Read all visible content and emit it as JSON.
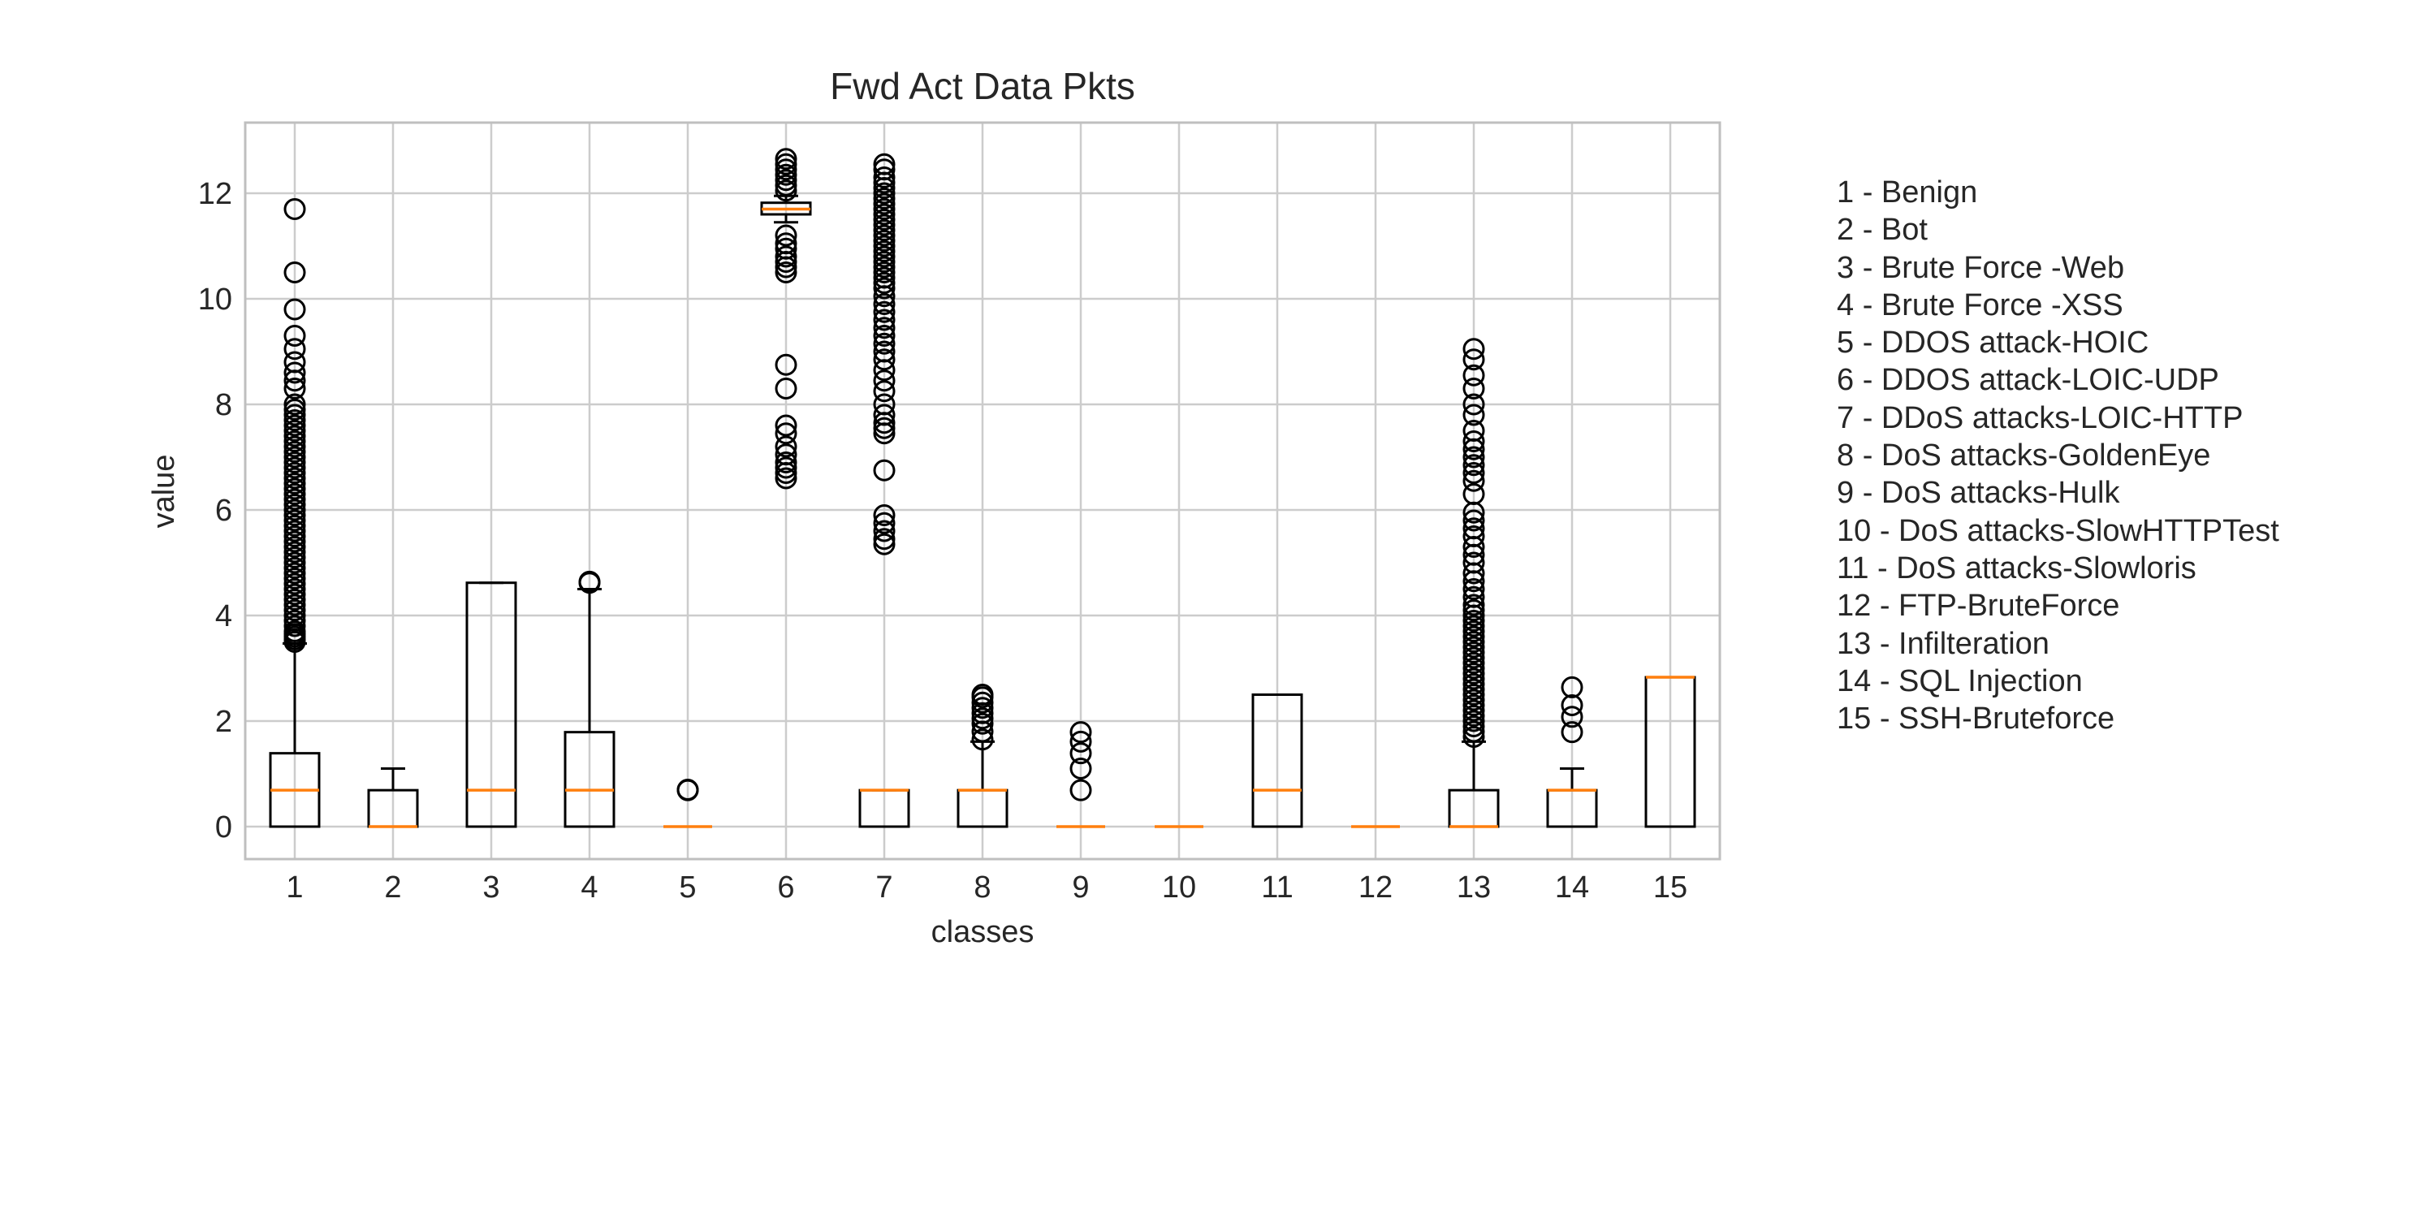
{
  "chart_data": {
    "type": "boxplot",
    "title": "Fwd Act Data Pkts",
    "xlabel": "classes",
    "ylabel": "value",
    "categories": [
      "1",
      "2",
      "3",
      "4",
      "5",
      "6",
      "7",
      "8",
      "9",
      "10",
      "11",
      "12",
      "13",
      "14",
      "15"
    ],
    "ylim": [
      -0.6,
      13.2
    ],
    "yticks": [
      0,
      2,
      4,
      6,
      8,
      10,
      12
    ],
    "grid": true,
    "legend_position": "right",
    "colors": {
      "box": "#000000",
      "median": "#ff7f0e",
      "grid": "#cccccc",
      "frame": "#bfbfbf"
    },
    "boxes": [
      {
        "q1": 0,
        "median": 0.69,
        "q3": 1.39,
        "whislo": 0,
        "whishi": 3.47,
        "outliers": [
          3.5,
          3.55,
          3.6,
          3.65,
          3.7,
          3.8,
          3.9,
          4.0,
          4.1,
          4.2,
          4.3,
          4.4,
          4.5,
          4.6,
          4.7,
          4.8,
          4.9,
          5.0,
          5.1,
          5.2,
          5.3,
          5.4,
          5.5,
          5.6,
          5.7,
          5.8,
          5.9,
          6.0,
          6.1,
          6.2,
          6.3,
          6.4,
          6.5,
          6.6,
          6.7,
          6.8,
          6.9,
          7.0,
          7.1,
          7.2,
          7.3,
          7.4,
          7.5,
          7.6,
          7.7,
          7.8,
          7.9,
          8.0,
          8.3,
          8.45,
          8.6,
          8.8,
          9.05,
          9.3,
          9.8,
          10.5,
          11.7
        ]
      },
      {
        "q1": 0,
        "median": 0,
        "q3": 0.69,
        "whislo": 0,
        "whishi": 1.1,
        "outliers": []
      },
      {
        "q1": 0,
        "median": 0.69,
        "q3": 4.62,
        "whislo": 0,
        "whishi": 4.62,
        "outliers": []
      },
      {
        "q1": 0,
        "median": 0.69,
        "q3": 1.79,
        "whislo": 0,
        "whishi": 4.5,
        "outliers": [
          4.62,
          4.64
        ]
      },
      {
        "q1": 0,
        "median": 0,
        "q3": 0,
        "whislo": 0,
        "whishi": 0,
        "outliers": [
          0.69,
          0.7
        ]
      },
      {
        "q1": 11.6,
        "median": 11.7,
        "q3": 11.82,
        "whislo": 11.45,
        "whishi": 11.95,
        "outliers": [
          6.6,
          6.7,
          6.8,
          6.9,
          7.05,
          7.2,
          7.45,
          7.6,
          8.3,
          8.75,
          10.5,
          10.6,
          10.7,
          10.8,
          10.95,
          11.05,
          11.2,
          12.05,
          12.15,
          12.25,
          12.35,
          12.45,
          12.55,
          12.65
        ]
      },
      {
        "q1": 0,
        "median": 0.69,
        "q3": 0.69,
        "whislo": 0,
        "whishi": 0.69,
        "outliers": [
          5.35,
          5.45,
          5.6,
          5.75,
          5.9,
          6.75,
          7.45,
          7.55,
          7.65,
          7.8,
          8.0,
          8.25,
          8.45,
          8.65,
          8.85,
          9.0,
          9.15,
          9.3,
          9.45,
          9.6,
          9.75,
          9.9,
          10.05,
          10.2,
          10.3,
          10.4,
          10.5,
          10.6,
          10.7,
          10.8,
          10.9,
          11.0,
          11.1,
          11.2,
          11.3,
          11.4,
          11.5,
          11.6,
          11.7,
          11.8,
          11.9,
          12.0,
          12.1,
          12.2,
          12.3,
          12.45,
          12.55
        ]
      },
      {
        "q1": 0,
        "median": 0.69,
        "q3": 0.69,
        "whislo": 0,
        "whishi": 1.61,
        "outliers": [
          1.65,
          1.8,
          1.95,
          2.05,
          2.15,
          2.25,
          2.35,
          2.45,
          2.5
        ]
      },
      {
        "q1": 0,
        "median": 0,
        "q3": 0,
        "whislo": 0,
        "whishi": 0,
        "outliers": [
          0.69,
          1.1,
          1.39,
          1.61,
          1.79
        ]
      },
      {
        "q1": 0,
        "median": 0,
        "q3": 0,
        "whislo": 0,
        "whishi": 0,
        "outliers": []
      },
      {
        "q1": 0,
        "median": 0.69,
        "q3": 2.5,
        "whislo": 0,
        "whishi": 2.5,
        "outliers": []
      },
      {
        "q1": 0,
        "median": 0,
        "q3": 0,
        "whislo": 0,
        "whishi": 0,
        "outliers": []
      },
      {
        "q1": 0,
        "median": 0,
        "q3": 0.69,
        "whislo": 0,
        "whishi": 1.61,
        "outliers": [
          1.7,
          1.8,
          1.9,
          2.0,
          2.1,
          2.2,
          2.3,
          2.4,
          2.5,
          2.6,
          2.7,
          2.8,
          2.9,
          3.0,
          3.1,
          3.2,
          3.3,
          3.4,
          3.5,
          3.6,
          3.7,
          3.8,
          3.9,
          4.0,
          4.1,
          4.2,
          4.35,
          4.5,
          4.65,
          4.8,
          5.0,
          5.15,
          5.3,
          5.5,
          5.65,
          5.8,
          5.95,
          6.3,
          6.55,
          6.7,
          6.85,
          7.0,
          7.15,
          7.3,
          7.5,
          7.8,
          8.0,
          8.3,
          8.55,
          8.85,
          9.05
        ]
      },
      {
        "q1": 0,
        "median": 0.69,
        "q3": 0.69,
        "whislo": 0,
        "whishi": 1.1,
        "outliers": [
          1.79,
          2.08,
          2.3,
          2.64
        ]
      },
      {
        "q1": 0,
        "median": 2.83,
        "q3": 2.83,
        "whislo": 0,
        "whishi": 2.83,
        "outliers": []
      }
    ],
    "legend": [
      "1 - Benign",
      "2 - Bot",
      "3 - Brute Force -Web",
      "4 - Brute Force -XSS",
      "5 - DDOS attack-HOIC",
      "6 - DDOS attack-LOIC-UDP",
      "7 - DDoS attacks-LOIC-HTTP",
      "8 - DoS attacks-GoldenEye",
      "9 - DoS attacks-Hulk",
      "10 - DoS attacks-SlowHTTPTest",
      "11 - DoS attacks-Slowloris",
      "12 - FTP-BruteForce",
      "13 - Infilteration",
      "14 - SQL Injection",
      "15 - SSH-Bruteforce"
    ]
  }
}
